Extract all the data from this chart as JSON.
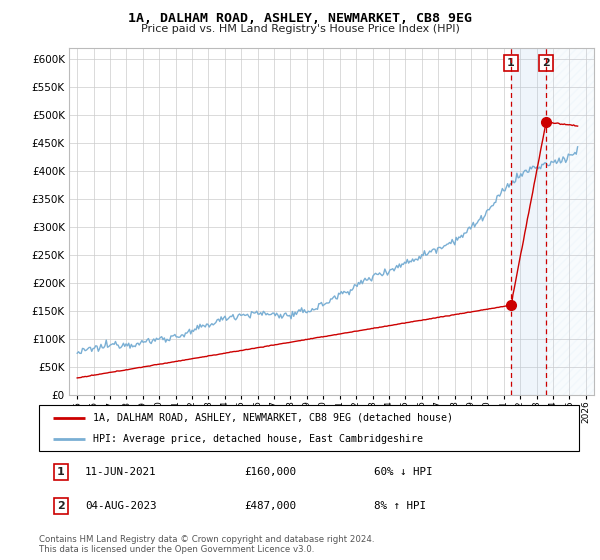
{
  "title": "1A, DALHAM ROAD, ASHLEY, NEWMARKET, CB8 9EG",
  "subtitle": "Price paid vs. HM Land Registry's House Price Index (HPI)",
  "legend_line1": "1A, DALHAM ROAD, ASHLEY, NEWMARKET, CB8 9EG (detached house)",
  "legend_line2": "HPI: Average price, detached house, East Cambridgeshire",
  "annotation1_date": "11-JUN-2021",
  "annotation1_price": "£160,000",
  "annotation1_pct": "60% ↓ HPI",
  "annotation2_date": "04-AUG-2023",
  "annotation2_price": "£487,000",
  "annotation2_pct": "8% ↑ HPI",
  "footer": "Contains HM Land Registry data © Crown copyright and database right 2024.\nThis data is licensed under the Open Government Licence v3.0.",
  "property_color": "#cc0000",
  "hpi_color": "#7aafd4",
  "annotation_box_color": "#cc0000",
  "ylim": [
    0,
    620000
  ],
  "yticks": [
    0,
    50000,
    100000,
    150000,
    200000,
    250000,
    300000,
    350000,
    400000,
    450000,
    500000,
    550000,
    600000
  ],
  "sale1_year": 2021.44,
  "sale1_price": 160000,
  "sale2_year": 2023.58,
  "sale2_price": 487000,
  "xlim_left": 1994.5,
  "xlim_right": 2026.5
}
